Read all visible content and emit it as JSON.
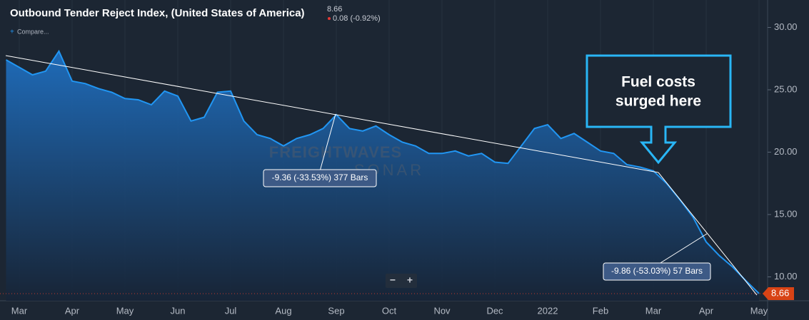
{
  "chart_data": {
    "type": "area",
    "title": "Outbound Tender Reject Index, (United States of America)",
    "change": "0.08 (-0.92%)",
    "compare": "Compare...",
    "watermark": [
      "FREIGHTWAVES",
      "SONAR"
    ],
    "zoom": [
      "−",
      "+"
    ],
    "annotations": [
      "-9.36 (-33.53%) 377 Bars",
      "-9.86 (-53.03%) 57 Bars"
    ],
    "callout": [
      "Fuel costs",
      "surged here"
    ],
    "color": "#2196f3",
    "categories": [
      null,
      "Mar",
      null,
      null,
      null,
      "Apr",
      null,
      null,
      null,
      "May",
      null,
      null,
      null,
      "Jun",
      null,
      null,
      null,
      "Jul",
      null,
      null,
      null,
      "Aug",
      null,
      null,
      null,
      "Sep",
      null,
      null,
      null,
      "Oct",
      null,
      null,
      null,
      "Nov",
      null,
      null,
      null,
      "Dec",
      null,
      null,
      null,
      "2022",
      null,
      null,
      null,
      "Feb",
      null,
      null,
      null,
      "Mar",
      null,
      null,
      null,
      "Apr",
      null,
      null,
      null,
      "May"
    ],
    "values": [
      27.4,
      26.8,
      26.2,
      26.5,
      28.1,
      25.7,
      25.5,
      25.1,
      24.8,
      24.3,
      24.2,
      23.8,
      24.9,
      24.5,
      22.5,
      22.8,
      24.8,
      24.9,
      22.5,
      21.4,
      21.1,
      20.5,
      21.1,
      21.4,
      21.9,
      23.0,
      21.9,
      21.7,
      22.1,
      21.4,
      20.8,
      20.5,
      19.9,
      19.9,
      20.1,
      19.7,
      19.9,
      19.2,
      19.1,
      20.5,
      21.9,
      22.2,
      21.1,
      21.5,
      20.8,
      20.1,
      19.9,
      19.0,
      18.8,
      18.5,
      17.5,
      16.2,
      14.8,
      12.8,
      11.7,
      10.8,
      9.7,
      8.66
    ],
    "ylim": [
      8.2,
      32.2
    ],
    "yticks": [
      {
        "value": 10,
        "label": "10.00"
      },
      {
        "value": 15,
        "label": "15.00"
      },
      {
        "value": 20,
        "label": "20.00"
      },
      {
        "value": 25,
        "label": "25.00"
      },
      {
        "value": 30,
        "label": "30.00"
      }
    ]
  }
}
